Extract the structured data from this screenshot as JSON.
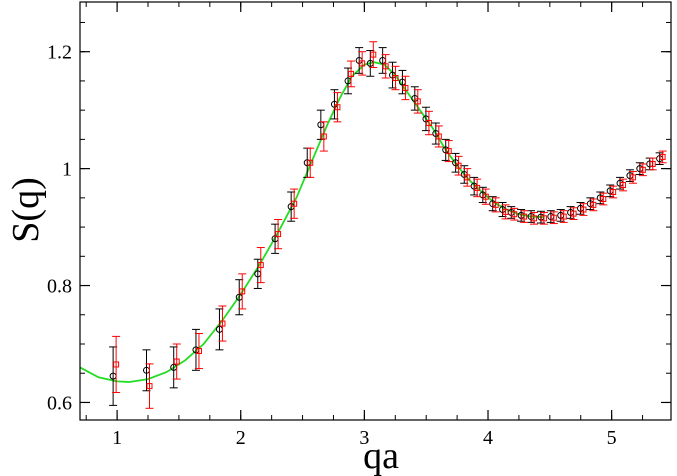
{
  "chart_data": {
    "type": "scatter",
    "title": "",
    "xlabel": "qa",
    "ylabel": "S(q)",
    "xlim": [
      0.7,
      5.48
    ],
    "ylim": [
      0.57,
      1.285
    ],
    "xticks": [
      1,
      2,
      3,
      4,
      5
    ],
    "yticks": [
      0.6,
      0.8,
      1,
      1.2
    ],
    "xtick_labels": [
      "1",
      "2",
      "3",
      "4",
      "5"
    ],
    "ytick_labels": [
      "0.6",
      "0.8",
      "1",
      "1.2"
    ],
    "grid": false,
    "legend": "none",
    "series": [
      {
        "marker": "circle",
        "color": "#000000",
        "points": [
          [
            0.98,
            0.645,
            0.05
          ],
          [
            1.25,
            0.655,
            0.035
          ],
          [
            1.47,
            0.66,
            0.035
          ],
          [
            1.65,
            0.69,
            0.035
          ],
          [
            1.84,
            0.725,
            0.035
          ],
          [
            2.0,
            0.78,
            0.03
          ],
          [
            2.15,
            0.82,
            0.025
          ],
          [
            2.29,
            0.88,
            0.025
          ],
          [
            2.42,
            0.935,
            0.025
          ],
          [
            2.55,
            1.01,
            0.025
          ],
          [
            2.66,
            1.075,
            0.025
          ],
          [
            2.77,
            1.11,
            0.025
          ],
          [
            2.88,
            1.15,
            0.022
          ],
          [
            2.97,
            1.185,
            0.022
          ],
          [
            3.06,
            1.18,
            0.022
          ],
          [
            3.16,
            1.185,
            0.022
          ],
          [
            3.24,
            1.16,
            0.022
          ],
          [
            3.32,
            1.148,
            0.02
          ],
          [
            3.42,
            1.12,
            0.02
          ],
          [
            3.51,
            1.085,
            0.02
          ],
          [
            3.59,
            1.06,
            0.018
          ],
          [
            3.67,
            1.032,
            0.018
          ],
          [
            3.75,
            1.01,
            0.016
          ],
          [
            3.82,
            0.99,
            0.015
          ],
          [
            3.9,
            0.97,
            0.015
          ],
          [
            3.97,
            0.955,
            0.013
          ],
          [
            4.05,
            0.94,
            0.012
          ],
          [
            4.13,
            0.93,
            0.012
          ],
          [
            4.2,
            0.925,
            0.01
          ],
          [
            4.28,
            0.92,
            0.01
          ],
          [
            4.36,
            0.918,
            0.01
          ],
          [
            4.44,
            0.917,
            0.01
          ],
          [
            4.52,
            0.918,
            0.01
          ],
          [
            4.6,
            0.92,
            0.01
          ],
          [
            4.68,
            0.925,
            0.01
          ],
          [
            4.76,
            0.932,
            0.01
          ],
          [
            4.84,
            0.94,
            0.01
          ],
          [
            4.92,
            0.95,
            0.01
          ],
          [
            5.0,
            0.962,
            0.01
          ],
          [
            5.08,
            0.975,
            0.01
          ],
          [
            5.16,
            0.988,
            0.01
          ],
          [
            5.24,
            1.0,
            0.01
          ],
          [
            5.32,
            1.008,
            0.01
          ],
          [
            5.4,
            1.017,
            0.01
          ]
        ]
      },
      {
        "marker": "square",
        "color": "#ff0000",
        "points": [
          [
            0.98,
            0.665,
            0.048
          ],
          [
            1.25,
            0.628,
            0.038
          ],
          [
            1.47,
            0.67,
            0.03
          ],
          [
            1.65,
            0.688,
            0.03
          ],
          [
            1.84,
            0.735,
            0.03
          ],
          [
            2.0,
            0.79,
            0.03
          ],
          [
            2.15,
            0.835,
            0.03
          ],
          [
            2.29,
            0.888,
            0.025
          ],
          [
            2.42,
            0.94,
            0.025
          ],
          [
            2.55,
            1.01,
            0.025
          ],
          [
            2.66,
            1.055,
            0.025
          ],
          [
            2.77,
            1.105,
            0.025
          ],
          [
            2.88,
            1.162,
            0.022
          ],
          [
            2.97,
            1.18,
            0.02
          ],
          [
            3.06,
            1.195,
            0.022
          ],
          [
            3.16,
            1.175,
            0.02
          ],
          [
            3.24,
            1.155,
            0.02
          ],
          [
            3.32,
            1.138,
            0.02
          ],
          [
            3.42,
            1.115,
            0.02
          ],
          [
            3.51,
            1.078,
            0.02
          ],
          [
            3.59,
            1.055,
            0.018
          ],
          [
            3.67,
            1.03,
            0.018
          ],
          [
            3.75,
            1.005,
            0.016
          ],
          [
            3.82,
            0.985,
            0.015
          ],
          [
            3.9,
            0.967,
            0.015
          ],
          [
            3.97,
            0.952,
            0.013
          ],
          [
            4.05,
            0.938,
            0.012
          ],
          [
            4.13,
            0.926,
            0.012
          ],
          [
            4.2,
            0.922,
            0.01
          ],
          [
            4.28,
            0.918,
            0.01
          ],
          [
            4.36,
            0.915,
            0.01
          ],
          [
            4.44,
            0.915,
            0.01
          ],
          [
            4.52,
            0.916,
            0.01
          ],
          [
            4.6,
            0.918,
            0.01
          ],
          [
            4.68,
            0.923,
            0.01
          ],
          [
            4.76,
            0.93,
            0.01
          ],
          [
            4.84,
            0.938,
            0.01
          ],
          [
            4.92,
            0.948,
            0.01
          ],
          [
            5.0,
            0.96,
            0.01
          ],
          [
            5.08,
            0.972,
            0.01
          ],
          [
            5.16,
            0.985,
            0.01
          ],
          [
            5.24,
            0.998,
            0.01
          ],
          [
            5.32,
            1.008,
            0.01
          ],
          [
            5.4,
            1.02,
            0.01
          ]
        ]
      },
      {
        "marker": "none",
        "line": true,
        "color": "#22dd22",
        "points": [
          [
            0.7,
            0.66
          ],
          [
            0.85,
            0.643
          ],
          [
            1.0,
            0.636
          ],
          [
            1.1,
            0.635
          ],
          [
            1.25,
            0.64
          ],
          [
            1.4,
            0.652
          ],
          [
            1.55,
            0.672
          ],
          [
            1.7,
            0.7
          ],
          [
            1.85,
            0.74
          ],
          [
            2.0,
            0.785
          ],
          [
            2.15,
            0.835
          ],
          [
            2.3,
            0.89
          ],
          [
            2.45,
            0.95
          ],
          [
            2.6,
            1.025
          ],
          [
            2.7,
            1.075
          ],
          [
            2.8,
            1.12
          ],
          [
            2.9,
            1.158
          ],
          [
            3.0,
            1.178
          ],
          [
            3.08,
            1.182
          ],
          [
            3.16,
            1.178
          ],
          [
            3.25,
            1.16
          ],
          [
            3.35,
            1.13
          ],
          [
            3.45,
            1.1
          ],
          [
            3.55,
            1.07
          ],
          [
            3.65,
            1.035
          ],
          [
            3.75,
            1.005
          ],
          [
            3.85,
            0.98
          ],
          [
            3.95,
            0.96
          ],
          [
            4.05,
            0.942
          ],
          [
            4.15,
            0.93
          ],
          [
            4.25,
            0.922
          ],
          [
            4.35,
            0.918
          ],
          [
            4.45,
            0.917
          ]
        ]
      }
    ]
  }
}
